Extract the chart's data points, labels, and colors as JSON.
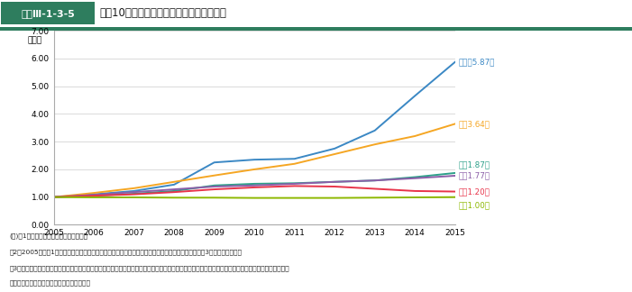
{
  "ylabel": "（倍）",
  "ylim": [
    0.0,
    7.0
  ],
  "yticks": [
    0.0,
    1.0,
    2.0,
    3.0,
    4.0,
    5.0,
    6.0,
    7.0
  ],
  "years": [
    2005,
    2006,
    2007,
    2008,
    2009,
    2010,
    2011,
    2012,
    2013,
    2014,
    2015
  ],
  "series": {
    "ロシア": {
      "values": [
        1.0,
        1.1,
        1.22,
        1.45,
        2.25,
        2.35,
        2.38,
        2.75,
        3.4,
        4.65,
        5.87
      ],
      "color": "#3b88c4",
      "final": 5.87
    },
    "中国": {
      "values": [
        1.0,
        1.15,
        1.32,
        1.55,
        1.78,
        2.0,
        2.2,
        2.55,
        2.9,
        3.2,
        3.64
      ],
      "color": "#f5a623",
      "final": 3.64
    },
    "豪州": {
      "values": [
        1.0,
        1.05,
        1.12,
        1.22,
        1.42,
        1.48,
        1.5,
        1.55,
        1.6,
        1.72,
        1.87
      ],
      "color": "#2ca089",
      "final": 1.87
    },
    "韓国": {
      "values": [
        1.0,
        1.08,
        1.18,
        1.28,
        1.38,
        1.42,
        1.48,
        1.55,
        1.6,
        1.68,
        1.77
      ],
      "color": "#8b5ea8",
      "final": 1.77
    },
    "米国": {
      "values": [
        1.0,
        1.05,
        1.1,
        1.18,
        1.28,
        1.35,
        1.4,
        1.38,
        1.3,
        1.22,
        1.2
      ],
      "color": "#e8344a",
      "final": 1.2
    },
    "日本": {
      "values": [
        1.0,
        0.99,
        0.99,
        0.98,
        0.98,
        0.97,
        0.97,
        0.97,
        0.98,
        0.99,
        1.0
      ],
      "color": "#8db800",
      "final": 1.0
    }
  },
  "label_order": [
    "ロシア",
    "中国",
    "豪州",
    "韓国",
    "米国",
    "日本"
  ],
  "annotations": [
    {
      "ロシア": [
        "ロシア5.87倍",
        5.87,
        "#3b88c4"
      ]
    },
    {
      "中国": [
        "中国3.64倍",
        3.64,
        "#f5a623"
      ]
    },
    {
      "豪州": [
        "豪州1.87倍",
        1.87,
        "#2ca089"
      ]
    },
    {
      "韓国": [
        "韓国1.77倍",
        1.77,
        "#8b5ea8"
      ]
    },
    {
      "米国": [
        "米国1.20倍",
        1.2,
        "#e8344a"
      ]
    },
    {
      "日本": [
        "日本1.00倍",
        1.0,
        "#8db800"
      ]
    }
  ],
  "header_bg": "#2e7d5e",
  "header_text_color": "#ffffff",
  "header_label": "図表Ⅲ-1-3-5",
  "chart_title": "最近10年間における周辺国の国防費の変化",
  "footer_lines": [
    "(注)　1　各国発表の国防費をもとに作成",
    "　2　2005年度を1とし、各年の国防費との比率を単純計算した場合の数値（倍）である。（小数点第3位を四捨五入）。",
    "　3　各国の国防費については、その定義・内訳が必ずしも明らかでない場合があり、また、各国の為替レートの変動や物価水準などの諸要素を勘案する",
    "　　　と、その比較には自ずと限界がある。"
  ],
  "background_color": "#ffffff"
}
